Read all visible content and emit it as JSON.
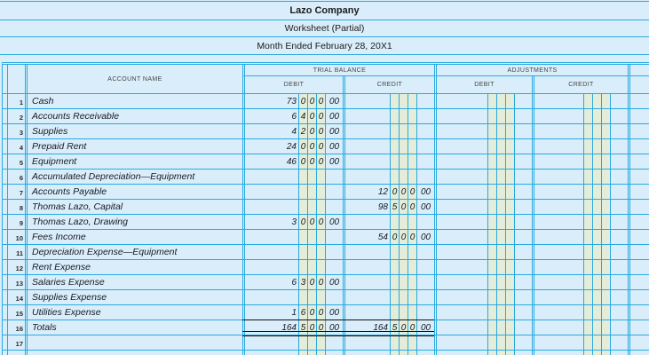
{
  "titles": {
    "company": "Lazo Company",
    "sheet": "Worksheet (Partial)",
    "period": "Month Ended February 28, 20X1"
  },
  "table": {
    "account_header": "ACCOUNT NAME",
    "sections": [
      {
        "label": "TRIAL BALANCE"
      },
      {
        "label": "ADJUSTMENTS"
      }
    ],
    "col_headers": {
      "debit": "DEBIT",
      "credit": "CREDIT"
    },
    "rows": [
      {
        "num": "1",
        "name": "Cash",
        "tb_debit": [
          "73",
          "0",
          "0",
          "0",
          "00"
        ]
      },
      {
        "num": "2",
        "name": "Accounts Receivable",
        "tb_debit": [
          "6",
          "4",
          "0",
          "0",
          "00"
        ]
      },
      {
        "num": "3",
        "name": "Supplies",
        "tb_debit": [
          "4",
          "2",
          "0",
          "0",
          "00"
        ]
      },
      {
        "num": "4",
        "name": "Prepaid Rent",
        "tb_debit": [
          "24",
          "0",
          "0",
          "0",
          "00"
        ]
      },
      {
        "num": "5",
        "name": "Equipment",
        "tb_debit": [
          "46",
          "0",
          "0",
          "0",
          "00"
        ]
      },
      {
        "num": "6",
        "name": "Accumulated Depreciation—Equipment"
      },
      {
        "num": "7",
        "name": "Accounts Payable",
        "tb_credit": [
          "12",
          "0",
          "0",
          "0",
          "00"
        ]
      },
      {
        "num": "8",
        "name": "Thomas Lazo, Capital",
        "tb_credit": [
          "98",
          "5",
          "0",
          "0",
          "00"
        ]
      },
      {
        "num": "9",
        "name": "Thomas Lazo, Drawing",
        "tb_debit": [
          "3",
          "0",
          "0",
          "0",
          "00"
        ]
      },
      {
        "num": "10",
        "name": "Fees Income",
        "tb_credit": [
          "54",
          "0",
          "0",
          "0",
          "00"
        ]
      },
      {
        "num": "11",
        "name": "Depreciation Expense—Equipment"
      },
      {
        "num": "12",
        "name": "Rent Expense"
      },
      {
        "num": "13",
        "name": "Salaries Expense",
        "tb_debit": [
          "6",
          "3",
          "0",
          "0",
          "00"
        ]
      },
      {
        "num": "14",
        "name": "Supplies Expense"
      },
      {
        "num": "15",
        "name": "Utilities Expense",
        "tb_debit": [
          "1",
          "6",
          "0",
          "0",
          "00"
        ]
      },
      {
        "num": "16",
        "name": "Totals",
        "totals": true,
        "tb_debit": [
          "164",
          "5",
          "0",
          "0",
          "00"
        ],
        "tb_credit": [
          "164",
          "5",
          "0",
          "0",
          "00"
        ]
      },
      {
        "num": "17",
        "name": ""
      }
    ]
  },
  "colors": {
    "background": "#d9eefa",
    "grid_line": "#29a9e0",
    "digit_cell": "#e4edd9",
    "text": "#181a24",
    "totals_ruling": "#111111"
  }
}
